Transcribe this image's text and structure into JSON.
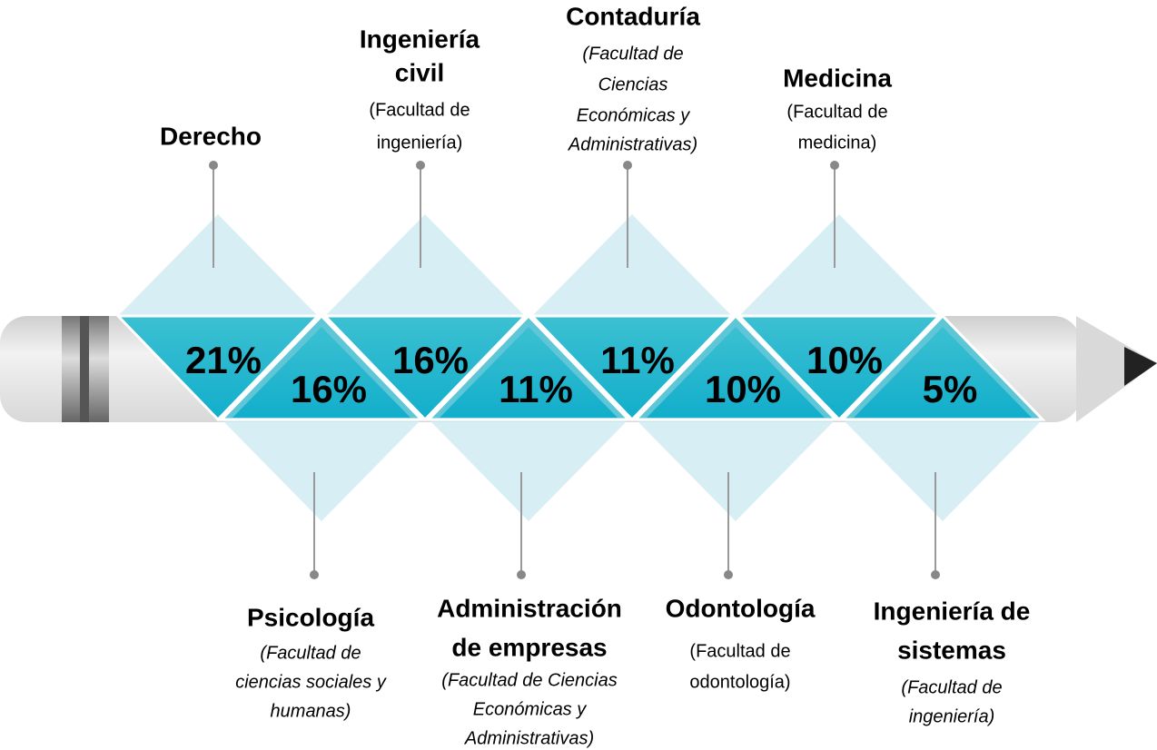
{
  "top": [
    {
      "name": [
        "Derecho"
      ],
      "faculty": [],
      "italic": false,
      "value": "21%"
    },
    {
      "name": [
        "Ingeniería",
        "civil"
      ],
      "faculty": [
        "(Facultad de",
        "ingeniería)"
      ],
      "italic": false,
      "value": "16%"
    },
    {
      "name": [
        "Contaduría"
      ],
      "faculty": [
        "(Facultad de",
        "Ciencias",
        "Económicas y",
        "Administrativas)"
      ],
      "italic": true,
      "value": "11%"
    },
    {
      "name": [
        "Medicina"
      ],
      "faculty": [
        "(Facultad de",
        "medicina)"
      ],
      "italic": false,
      "value": "10%"
    }
  ],
  "bottom": [
    {
      "name": [
        "Psicología"
      ],
      "faculty": [
        "(Facultad de",
        "ciencias sociales y",
        "humanas)"
      ],
      "italic": true,
      "value": "16%"
    },
    {
      "name": [
        "Administración",
        "de empresas"
      ],
      "faculty": [
        "(Facultad de Ciencias",
        "Económicas y",
        "Administrativas)"
      ],
      "italic": true,
      "value": "11%"
    },
    {
      "name": [
        "Odontología"
      ],
      "faculty": [
        "(Facultad de",
        "odontología)"
      ],
      "italic": false,
      "value": "10%"
    },
    {
      "name": [
        "Ingeniería de",
        "sistemas"
      ],
      "faculty": [
        "(Facultad de",
        "ingeniería)"
      ],
      "italic": true,
      "value": "5%"
    }
  ]
}
